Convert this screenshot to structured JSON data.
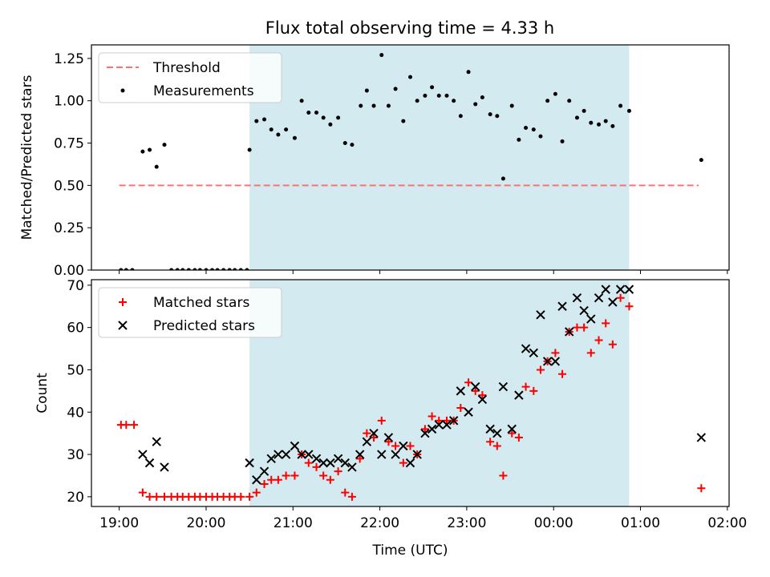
{
  "title": "Flux total observing time = 4.33 h",
  "chart_data": [
    {
      "type": "scatter",
      "ylabel": "Matched/Predicted stars",
      "xlim": [
        18.68,
        26.02
      ],
      "ylim": [
        0,
        1.33
      ],
      "yticks": [
        0.0,
        0.25,
        0.5,
        0.75,
        1.0,
        1.25
      ],
      "ytick_labels": [
        "0.00",
        "0.25",
        "0.50",
        "0.75",
        "1.00",
        "1.25"
      ],
      "shaded_span": {
        "x0": 20.5,
        "x1": 24.87,
        "color": "#d3eaf0"
      },
      "legend_position": "upper-left",
      "series": [
        {
          "name": "Threshold",
          "kind": "dashed-line",
          "color": "#ff7070",
          "points": [
            [
              19.0,
              0.5
            ],
            [
              25.67,
              0.5
            ]
          ]
        },
        {
          "name": "Measurements",
          "kind": "dot",
          "color": "#000000",
          "points": [
            [
              19.02,
              0.0
            ],
            [
              19.08,
              0.0
            ],
            [
              19.15,
              0.0
            ],
            [
              19.27,
              0.7
            ],
            [
              19.35,
              0.71
            ],
            [
              19.43,
              0.61
            ],
            [
              19.52,
              0.74
            ],
            [
              19.6,
              0.0
            ],
            [
              19.67,
              0.0
            ],
            [
              19.73,
              0.0
            ],
            [
              19.8,
              0.0
            ],
            [
              19.87,
              0.0
            ],
            [
              19.93,
              0.0
            ],
            [
              20.0,
              0.0
            ],
            [
              20.07,
              0.0
            ],
            [
              20.13,
              0.0
            ],
            [
              20.2,
              0.0
            ],
            [
              20.27,
              0.0
            ],
            [
              20.33,
              0.0
            ],
            [
              20.4,
              0.0
            ],
            [
              20.47,
              0.0
            ],
            [
              20.5,
              0.71
            ],
            [
              20.58,
              0.88
            ],
            [
              20.67,
              0.89
            ],
            [
              20.75,
              0.83
            ],
            [
              20.83,
              0.8
            ],
            [
              20.92,
              0.83
            ],
            [
              21.02,
              0.78
            ],
            [
              21.1,
              1.0
            ],
            [
              21.18,
              0.93
            ],
            [
              21.27,
              0.93
            ],
            [
              21.35,
              0.9
            ],
            [
              21.43,
              0.86
            ],
            [
              21.52,
              0.9
            ],
            [
              21.6,
              0.75
            ],
            [
              21.68,
              0.74
            ],
            [
              21.78,
              0.97
            ],
            [
              21.85,
              1.06
            ],
            [
              21.93,
              0.97
            ],
            [
              22.02,
              1.27
            ],
            [
              22.1,
              0.97
            ],
            [
              22.18,
              1.07
            ],
            [
              22.27,
              0.88
            ],
            [
              22.35,
              1.14
            ],
            [
              22.43,
              1.0
            ],
            [
              22.52,
              1.03
            ],
            [
              22.6,
              1.08
            ],
            [
              22.68,
              1.03
            ],
            [
              22.77,
              1.03
            ],
            [
              22.85,
              1.0
            ],
            [
              22.93,
              0.91
            ],
            [
              23.02,
              1.17
            ],
            [
              23.1,
              0.98
            ],
            [
              23.18,
              1.02
            ],
            [
              23.27,
              0.92
            ],
            [
              23.35,
              0.91
            ],
            [
              23.42,
              0.54
            ],
            [
              23.52,
              0.97
            ],
            [
              23.6,
              0.77
            ],
            [
              23.68,
              0.84
            ],
            [
              23.77,
              0.83
            ],
            [
              23.85,
              0.79
            ],
            [
              23.93,
              1.0
            ],
            [
              24.02,
              1.04
            ],
            [
              24.1,
              0.76
            ],
            [
              24.18,
              1.0
            ],
            [
              24.27,
              0.9
            ],
            [
              24.35,
              0.94
            ],
            [
              24.43,
              0.87
            ],
            [
              24.52,
              0.86
            ],
            [
              24.6,
              0.88
            ],
            [
              24.68,
              0.85
            ],
            [
              24.77,
              0.97
            ],
            [
              24.87,
              0.94
            ],
            [
              25.7,
              0.65
            ]
          ]
        }
      ]
    },
    {
      "type": "scatter",
      "ylabel": "Count",
      "xlabel": "Time (UTC)",
      "xlim": [
        18.68,
        26.02
      ],
      "ylim": [
        17.7,
        71.3
      ],
      "yticks": [
        20,
        30,
        40,
        50,
        60,
        70
      ],
      "ytick_labels": [
        "20",
        "30",
        "40",
        "50",
        "60",
        "70"
      ],
      "xticks": [
        19,
        20,
        21,
        22,
        23,
        24,
        25,
        26
      ],
      "xtick_labels": [
        "19:00",
        "20:00",
        "21:00",
        "22:00",
        "23:00",
        "00:00",
        "01:00",
        "02:00"
      ],
      "shaded_span": {
        "x0": 20.5,
        "x1": 24.87,
        "color": "#d3eaf0"
      },
      "legend_position": "upper-left",
      "series": [
        {
          "name": "Matched stars",
          "kind": "plus",
          "color": "#ff0000",
          "points": [
            [
              19.02,
              37
            ],
            [
              19.08,
              37
            ],
            [
              19.17,
              37
            ],
            [
              19.27,
              21
            ],
            [
              19.35,
              20
            ],
            [
              19.43,
              20
            ],
            [
              19.52,
              20
            ],
            [
              19.6,
              20
            ],
            [
              19.67,
              20
            ],
            [
              19.73,
              20
            ],
            [
              19.8,
              20
            ],
            [
              19.87,
              20
            ],
            [
              19.93,
              20
            ],
            [
              20.0,
              20
            ],
            [
              20.07,
              20
            ],
            [
              20.13,
              20
            ],
            [
              20.2,
              20
            ],
            [
              20.27,
              20
            ],
            [
              20.33,
              20
            ],
            [
              20.4,
              20
            ],
            [
              20.5,
              20
            ],
            [
              20.58,
              21
            ],
            [
              20.67,
              23
            ],
            [
              20.75,
              24
            ],
            [
              20.83,
              24
            ],
            [
              20.92,
              25
            ],
            [
              21.02,
              25
            ],
            [
              21.1,
              30
            ],
            [
              21.18,
              28
            ],
            [
              21.27,
              27
            ],
            [
              21.35,
              25
            ],
            [
              21.43,
              24
            ],
            [
              21.52,
              26
            ],
            [
              21.6,
              21
            ],
            [
              21.68,
              20
            ],
            [
              21.77,
              29
            ],
            [
              21.85,
              35
            ],
            [
              21.93,
              34
            ],
            [
              22.02,
              38
            ],
            [
              22.1,
              33
            ],
            [
              22.18,
              32
            ],
            [
              22.27,
              28
            ],
            [
              22.35,
              32
            ],
            [
              22.43,
              30
            ],
            [
              22.52,
              36
            ],
            [
              22.6,
              39
            ],
            [
              22.68,
              38
            ],
            [
              22.77,
              38
            ],
            [
              22.85,
              38
            ],
            [
              22.93,
              41
            ],
            [
              23.02,
              47
            ],
            [
              23.1,
              45
            ],
            [
              23.18,
              44
            ],
            [
              23.27,
              33
            ],
            [
              23.35,
              32
            ],
            [
              23.42,
              25
            ],
            [
              23.52,
              35
            ],
            [
              23.6,
              34
            ],
            [
              23.68,
              46
            ],
            [
              23.77,
              45
            ],
            [
              23.85,
              50
            ],
            [
              23.93,
              52
            ],
            [
              24.02,
              54
            ],
            [
              24.1,
              49
            ],
            [
              24.18,
              59
            ],
            [
              24.27,
              60
            ],
            [
              24.35,
              60
            ],
            [
              24.43,
              54
            ],
            [
              24.52,
              57
            ],
            [
              24.6,
              61
            ],
            [
              24.68,
              56
            ],
            [
              24.77,
              67
            ],
            [
              24.87,
              65
            ],
            [
              25.7,
              22
            ]
          ]
        },
        {
          "name": "Predicted stars",
          "kind": "x",
          "color": "#000000",
          "points": [
            [
              19.27,
              30
            ],
            [
              19.35,
              28
            ],
            [
              19.43,
              33
            ],
            [
              19.52,
              27
            ],
            [
              20.5,
              28
            ],
            [
              20.58,
              24
            ],
            [
              20.67,
              26
            ],
            [
              20.75,
              29
            ],
            [
              20.83,
              30
            ],
            [
              20.92,
              30
            ],
            [
              21.02,
              32
            ],
            [
              21.1,
              30
            ],
            [
              21.18,
              30
            ],
            [
              21.27,
              29
            ],
            [
              21.35,
              28
            ],
            [
              21.43,
              28
            ],
            [
              21.52,
              29
            ],
            [
              21.6,
              28
            ],
            [
              21.68,
              27
            ],
            [
              21.77,
              30
            ],
            [
              21.85,
              33
            ],
            [
              21.93,
              35
            ],
            [
              22.02,
              30
            ],
            [
              22.1,
              34
            ],
            [
              22.18,
              30
            ],
            [
              22.27,
              32
            ],
            [
              22.35,
              28
            ],
            [
              22.43,
              30
            ],
            [
              22.52,
              35
            ],
            [
              22.6,
              36
            ],
            [
              22.68,
              37
            ],
            [
              22.77,
              37
            ],
            [
              22.85,
              38
            ],
            [
              22.93,
              45
            ],
            [
              23.02,
              40
            ],
            [
              23.1,
              46
            ],
            [
              23.18,
              43
            ],
            [
              23.27,
              36
            ],
            [
              23.35,
              35
            ],
            [
              23.42,
              46
            ],
            [
              23.52,
              36
            ],
            [
              23.6,
              44
            ],
            [
              23.68,
              55
            ],
            [
              23.77,
              54
            ],
            [
              23.85,
              63
            ],
            [
              23.93,
              52
            ],
            [
              24.02,
              52
            ],
            [
              24.1,
              65
            ],
            [
              24.18,
              59
            ],
            [
              24.27,
              67
            ],
            [
              24.35,
              64
            ],
            [
              24.43,
              62
            ],
            [
              24.52,
              67
            ],
            [
              24.6,
              69
            ],
            [
              24.68,
              66
            ],
            [
              24.77,
              69
            ],
            [
              24.87,
              69
            ],
            [
              25.7,
              34
            ]
          ]
        }
      ]
    }
  ]
}
